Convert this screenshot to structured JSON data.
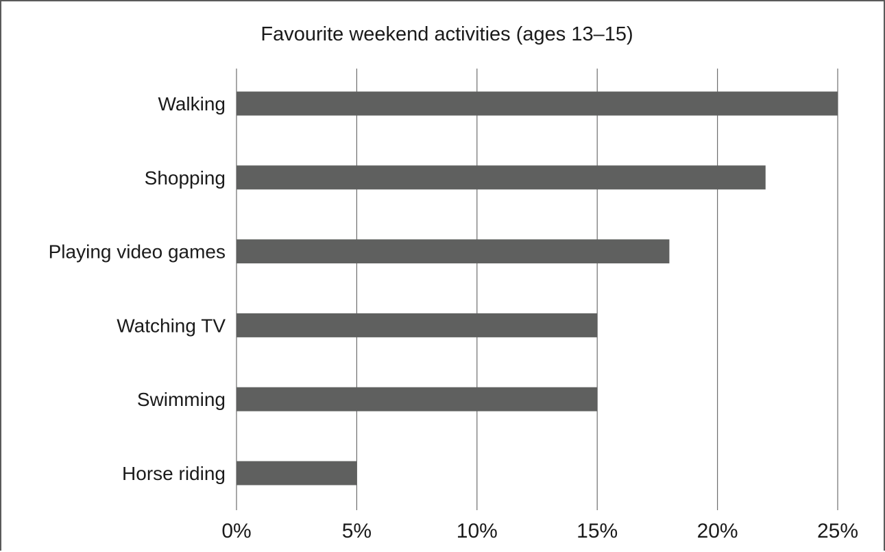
{
  "chart_data": {
    "type": "bar",
    "orientation": "horizontal",
    "title": "Favourite weekend activities (ages 13–15)",
    "xlabel": "",
    "ylabel": "",
    "categories": [
      "Walking",
      "Shopping",
      "Playing video games",
      "Watching TV",
      "Swimming",
      "Horse riding"
    ],
    "values": [
      25,
      22,
      18,
      15,
      15,
      5
    ],
    "value_unit": "%",
    "xlim": [
      0,
      25
    ],
    "x_ticks": [
      0,
      5,
      10,
      15,
      20,
      25
    ],
    "x_tick_labels": [
      "0%",
      "5%",
      "10%",
      "15%",
      "20%",
      "25%"
    ],
    "grid": "vertical",
    "legend": "none",
    "bar_color": "#5f605f"
  }
}
